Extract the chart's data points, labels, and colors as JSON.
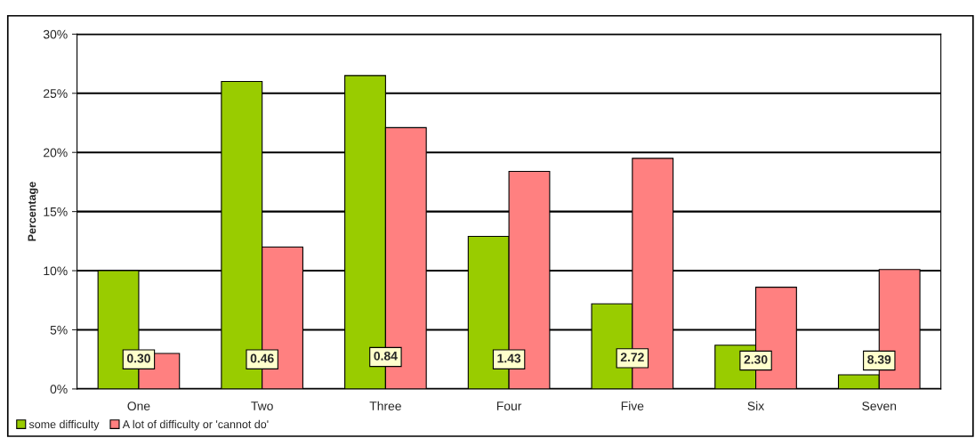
{
  "chart_data": {
    "type": "bar",
    "ylabel": "Percentage",
    "categories": [
      "One",
      "Two",
      "Three",
      "Four",
      "Five",
      "Six",
      "Seven"
    ],
    "series": [
      {
        "name": "some difficulty",
        "color": "#99cc00",
        "values": [
          10.0,
          26.0,
          26.5,
          12.9,
          7.2,
          3.7,
          1.2
        ]
      },
      {
        "name": "A lot of difficulty or 'cannot do'",
        "color": "#ff8080",
        "values": [
          3.0,
          12.0,
          22.1,
          18.4,
          19.5,
          8.6,
          10.1
        ]
      }
    ],
    "ylim": [
      0,
      30
    ],
    "yticks": [
      {
        "value": 0,
        "label": "0%"
      },
      {
        "value": 5,
        "label": "5%"
      },
      {
        "value": 10,
        "label": "10%"
      },
      {
        "value": 15,
        "label": "15%"
      },
      {
        "value": 20,
        "label": "20%"
      },
      {
        "value": 25,
        "label": "25%"
      },
      {
        "value": 30,
        "label": "30%"
      }
    ],
    "grid": "y",
    "legend": "bottom left",
    "annotations": [
      {
        "text": "0.30",
        "x": "One",
        "y": 2.5
      },
      {
        "text": "0.46",
        "x": "Two",
        "y": 2.5
      },
      {
        "text": "0.84",
        "x": "Three",
        "y": 2.7
      },
      {
        "text": "1.43",
        "x": "Four",
        "y": 2.5
      },
      {
        "text": "2.72",
        "x": "Five",
        "y": 2.6
      },
      {
        "text": "2.30",
        "x": "Six",
        "y": 2.4
      },
      {
        "text": "8.39",
        "x": "Seven",
        "y": 2.4
      }
    ]
  }
}
